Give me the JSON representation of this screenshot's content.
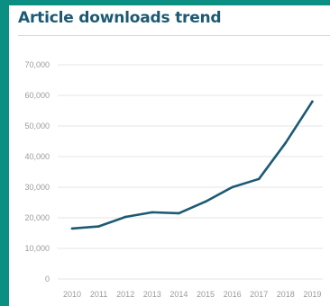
{
  "title": "Article downloads trend",
  "colors": {
    "frame": "#0a8f82",
    "title": "#1c5a73",
    "line": "#1c5a73",
    "grid": "#e6e6e6",
    "tick_text": "#9a9a9a"
  },
  "chart_data": {
    "type": "line",
    "title": "Article downloads trend",
    "xlabel": "",
    "ylabel": "",
    "x": [
      "2010",
      "2011",
      "2012",
      "2013",
      "2014",
      "2015",
      "2016",
      "2017",
      "2018",
      "2019"
    ],
    "series": [
      {
        "values": [
          16500,
          17200,
          20300,
          21800,
          21500,
          25300,
          30000,
          32700,
          44500,
          58000
        ]
      }
    ],
    "ylim": [
      0,
      70000
    ],
    "yticks": [
      0,
      10000,
      20000,
      30000,
      40000,
      50000,
      60000,
      70000
    ],
    "ytick_labels": [
      "0",
      "10,000",
      "20,000",
      "30,000",
      "40,000",
      "50,000",
      "60,000",
      "70,000"
    ],
    "grid": true,
    "legend": "none"
  }
}
